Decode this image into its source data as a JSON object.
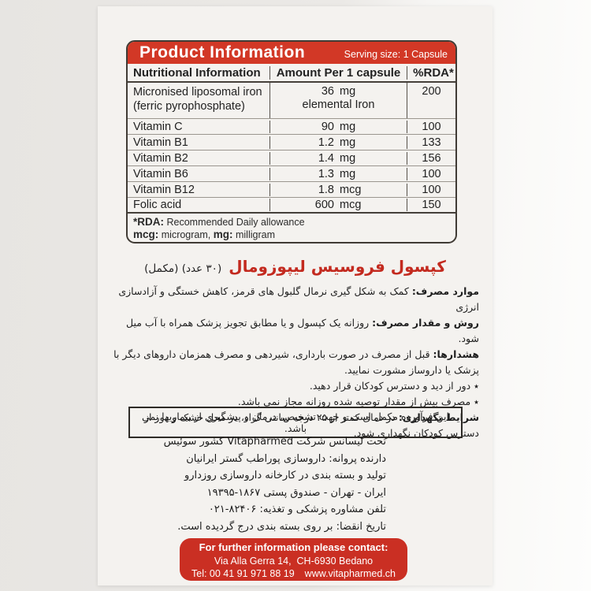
{
  "colors": {
    "header_red": "#d23826",
    "title_red": "#c32a1f",
    "contact_red": "#ca2f23",
    "card_bg": "#f4f2ef",
    "page_bg": "#e9e7e4"
  },
  "table": {
    "title": "Product Information",
    "serving_size": "Serving size: 1 Capsule",
    "columns": [
      "Nutritional Information",
      "Amount Per 1 capsule",
      "%RDA*"
    ],
    "rows": [
      {
        "name": "Micronised liposomal iron",
        "name_line2": "(ferric pyrophosphate)",
        "value": "36",
        "unit": "mg",
        "value_note": "elemental Iron",
        "rda": "200"
      },
      {
        "name": "Vitamin C",
        "value": "90",
        "unit": "mg",
        "rda": "100"
      },
      {
        "name": "Vitamin B1",
        "value": "1.2",
        "unit": "mg",
        "rda": "133"
      },
      {
        "name": "Vitamin B2",
        "value": "1.4",
        "unit": "mg",
        "rda": "156"
      },
      {
        "name": "Vitamin B6",
        "value": "1.3",
        "unit": "mg",
        "rda": "100"
      },
      {
        "name": "Vitamin B12",
        "value": "1.8",
        "unit": "mcg",
        "rda": "100"
      },
      {
        "name": "Folic acid",
        "value": "600",
        "unit": "mcg",
        "rda": "150"
      }
    ],
    "footnotes": {
      "rda_label": "*RDA:",
      "rda_text": "Recommended Daily allowance",
      "mcg_label": "mcg:",
      "mcg_text": "microgram,",
      "mg_label": "mg:",
      "mg_text": "milligram"
    }
  },
  "persian": {
    "product_title": "کپسول فروسیس لیپوزومال",
    "product_title_suffix": "(۳۰ عدد) (مکمل)",
    "paragraphs": [
      {
        "label": "موارد مصرف:",
        "text": "کمک به شکل گیری نرمال گلبول های قرمز، کاهش خستگی و آزادسازی انرژی"
      },
      {
        "label": "روش و مقدار مصرف:",
        "text": "روزانه یک کپسول و یا مطابق تجویز پزشک همراه با آب میل شود."
      },
      {
        "label": "هشدارها:",
        "text": "قبل از مصرف در صورت بارداری، شیردهی و مصرف همزمان داروهای دیگر با پزشک یا داروساز مشورت نمایید."
      },
      {
        "text": "٭ دور از دید و دسترس کودکان قرار دهید."
      },
      {
        "text": "٭ مصرف بیش از مقدار توصیه شده روزانه مجاز نمی باشد."
      },
      {
        "label": "شرایط نگهداری:",
        "text": "در دمای کمتر از ۲۵ درجه سانتی گراد، در محل خشک و دور از دسترس کودکان نگهداری شود."
      }
    ],
    "notice": "این فرآورده مکمل است و جهت تشخیص، درمان و پیشگیری از بیماریها نمی باشد.",
    "company_lines": [
      "تحت لیسانس شرکت Vitapharmed کشور سوئیس",
      "دارنده پروانه: داروسازی پوراطب گستر ایرانیان",
      "تولید و بسته بندی در کارخانه داروسازی روزدارو",
      "ایران - تهران - صندوق پستی ⁦۱۹۳۹۵-۱۸۶۷⁩",
      "تلفن مشاوره پزشکی و تغذیه: ⁦۰۲۱-۸۲۴۰۶⁩",
      "تاریخ انقضا: بر روی بسته بندی درج گردیده است."
    ]
  },
  "contact": {
    "heading": "For further information please contact:",
    "address": "Via Alla Gerra 14,  CH-6930 Bedano",
    "tel": "Tel: 00 41 91 971 88 19",
    "website": "www.vitapharmed.ch"
  }
}
